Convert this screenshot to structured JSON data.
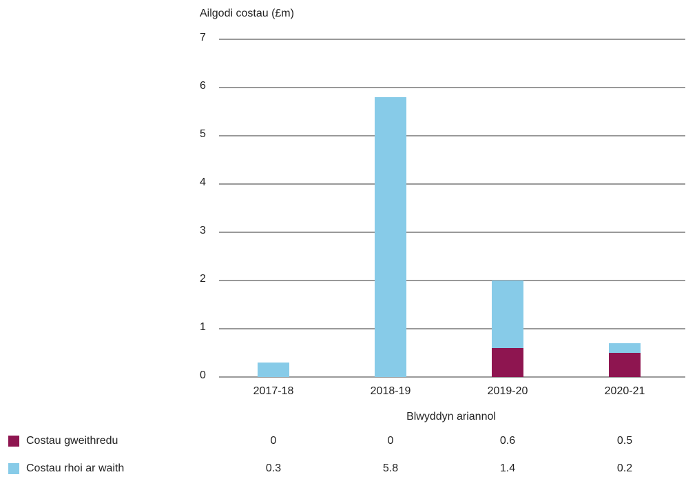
{
  "chart_data": {
    "type": "bar",
    "stacked": true,
    "y_label": "Ailgodi costau (£m)",
    "x_label": "Blwyddyn ariannol",
    "categories": [
      "2017-18",
      "2018-19",
      "2019-20",
      "2020-21"
    ],
    "series": [
      {
        "name": "Costau gweithredu",
        "color": "#8e1550",
        "values": [
          0,
          0,
          0.6,
          0.5
        ]
      },
      {
        "name": "Costau rhoi ar waith",
        "color": "#87cbe8",
        "values": [
          0.3,
          5.8,
          1.4,
          0.2
        ]
      }
    ],
    "ylim": [
      0,
      7
    ],
    "yticks": [
      0,
      1,
      2,
      3,
      4,
      5,
      6,
      7
    ],
    "grid": true
  }
}
